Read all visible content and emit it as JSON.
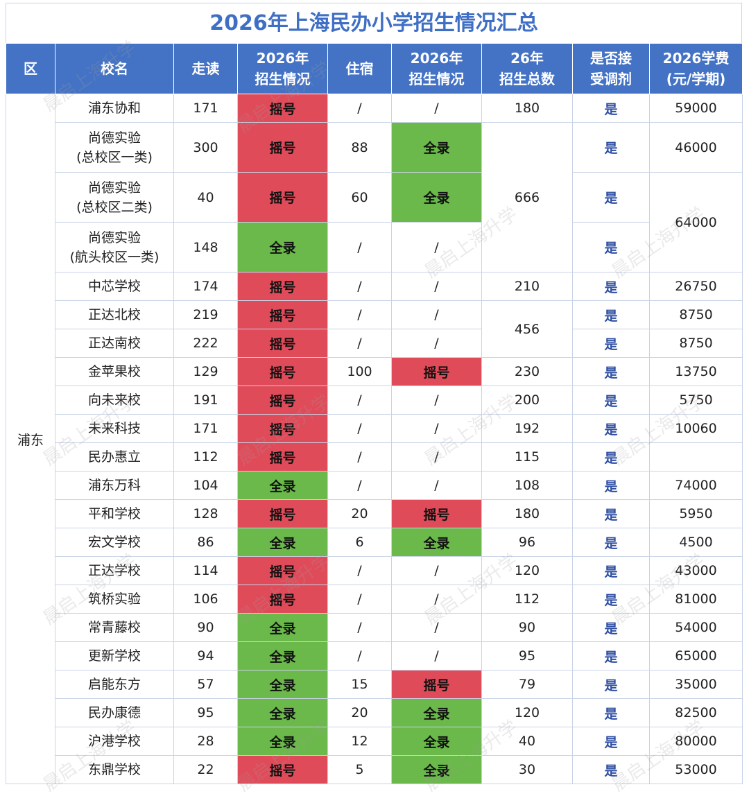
{
  "title": "2026年上海民办小学招生情况汇总",
  "watermark": "晨启上海升学",
  "colors": {
    "header_bg": "#4472c4",
    "title_text": "#3f6fc4",
    "lottery": "#e04b5a",
    "admit_all": "#6ab94a",
    "yes_text": "#2f4fa3"
  },
  "headers": [
    [
      "区"
    ],
    [
      "校名"
    ],
    [
      "走读"
    ],
    [
      "2026年",
      "招生情况"
    ],
    [
      "住宿"
    ],
    [
      "2026年",
      "招生情况"
    ],
    [
      "26年",
      "招生总数"
    ],
    [
      "是否接",
      "受调剂"
    ],
    [
      "2026学费",
      "(元/学期)"
    ]
  ],
  "district": "浦东",
  "rows": [
    {
      "name": [
        "浦东协和"
      ],
      "day": "171",
      "day_status": "摇号",
      "board": "/",
      "board_status": "/",
      "total": "180",
      "adjust": "是",
      "fee": "59000"
    },
    {
      "name": [
        "尚德实验",
        "(总校区一类)"
      ],
      "day": "300",
      "day_status": "摇号",
      "board": "88",
      "board_status": "全录",
      "total": "",
      "adjust": "是",
      "fee": "46000"
    },
    {
      "name": [
        "尚德实验",
        "(总校区二类)"
      ],
      "day": "40",
      "day_status": "摇号",
      "board": "60",
      "board_status": "全录",
      "total": "666",
      "adjust": "是",
      "fee": "64000"
    },
    {
      "name": [
        "尚德实验",
        "(航头校区一类)"
      ],
      "day": "148",
      "day_status": "全录",
      "board": "/",
      "board_status": "/",
      "total": "",
      "adjust": "是",
      "fee": ""
    },
    {
      "name": [
        "中芯学校"
      ],
      "day": "174",
      "day_status": "摇号",
      "board": "/",
      "board_status": "/",
      "total": "210",
      "adjust": "是",
      "fee": "26750"
    },
    {
      "name": [
        "正达北校"
      ],
      "day": "219",
      "day_status": "摇号",
      "board": "/",
      "board_status": "/",
      "total": "456",
      "adjust": "是",
      "fee": "8750"
    },
    {
      "name": [
        "正达南校"
      ],
      "day": "222",
      "day_status": "摇号",
      "board": "/",
      "board_status": "/",
      "total": "",
      "adjust": "是",
      "fee": "8750"
    },
    {
      "name": [
        "金苹果校"
      ],
      "day": "129",
      "day_status": "摇号",
      "board": "100",
      "board_status": "摇号",
      "total": "230",
      "adjust": "是",
      "fee": "13750"
    },
    {
      "name": [
        "向未来校"
      ],
      "day": "191",
      "day_status": "摇号",
      "board": "/",
      "board_status": "/",
      "total": "200",
      "adjust": "是",
      "fee": "5750"
    },
    {
      "name": [
        "未来科技"
      ],
      "day": "171",
      "day_status": "摇号",
      "board": "/",
      "board_status": "/",
      "total": "192",
      "adjust": "是",
      "fee": "10060"
    },
    {
      "name": [
        "民办惠立"
      ],
      "day": "112",
      "day_status": "摇号",
      "board": "/",
      "board_status": "/",
      "total": "115",
      "adjust": "是",
      "fee": ""
    },
    {
      "name": [
        "浦东万科"
      ],
      "day": "104",
      "day_status": "全录",
      "board": "/",
      "board_status": "/",
      "total": "108",
      "adjust": "是",
      "fee": "74000"
    },
    {
      "name": [
        "平和学校"
      ],
      "day": "128",
      "day_status": "摇号",
      "board": "20",
      "board_status": "摇号",
      "total": "180",
      "adjust": "是",
      "fee": "5950"
    },
    {
      "name": [
        "宏文学校"
      ],
      "day": "86",
      "day_status": "全录",
      "board": "6",
      "board_status": "全录",
      "total": "96",
      "adjust": "是",
      "fee": "4500"
    },
    {
      "name": [
        "正达学校"
      ],
      "day": "114",
      "day_status": "摇号",
      "board": "/",
      "board_status": "/",
      "total": "120",
      "adjust": "是",
      "fee": "43000"
    },
    {
      "name": [
        "筑桥实验"
      ],
      "day": "106",
      "day_status": "摇号",
      "board": "/",
      "board_status": "/",
      "total": "112",
      "adjust": "是",
      "fee": "81000"
    },
    {
      "name": [
        "常青藤校"
      ],
      "day": "90",
      "day_status": "全录",
      "board": "/",
      "board_status": "/",
      "total": "90",
      "adjust": "是",
      "fee": "54000"
    },
    {
      "name": [
        "更新学校"
      ],
      "day": "94",
      "day_status": "全录",
      "board": "/",
      "board_status": "/",
      "total": "95",
      "adjust": "是",
      "fee": "65000"
    },
    {
      "name": [
        "启能东方"
      ],
      "day": "57",
      "day_status": "全录",
      "board": "15",
      "board_status": "摇号",
      "total": "79",
      "adjust": "是",
      "fee": "35000"
    },
    {
      "name": [
        "民办康德"
      ],
      "day": "95",
      "day_status": "全录",
      "board": "20",
      "board_status": "全录",
      "total": "120",
      "adjust": "是",
      "fee": "82500"
    },
    {
      "name": [
        "沪港学校"
      ],
      "day": "28",
      "day_status": "全录",
      "board": "12",
      "board_status": "全录",
      "total": "40",
      "adjust": "是",
      "fee": "80000"
    },
    {
      "name": [
        "东鼎学校"
      ],
      "day": "22",
      "day_status": "摇号",
      "board": "5",
      "board_status": "全录",
      "total": "30",
      "adjust": "是",
      "fee": "53000"
    }
  ]
}
